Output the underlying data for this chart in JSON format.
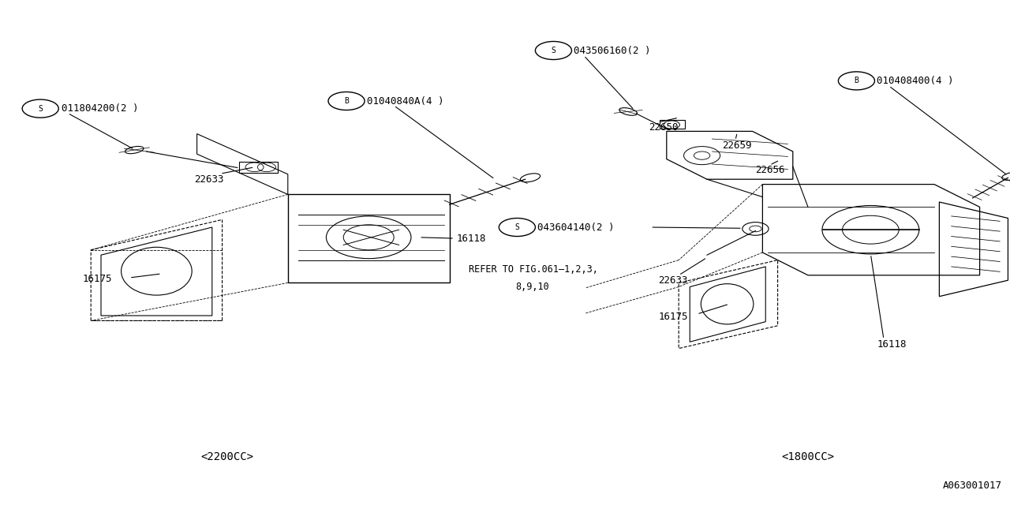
{
  "bg_color": "#ffffff",
  "line_color": "#000000",
  "fig_width": 12.8,
  "fig_height": 6.4,
  "dpi": 100,
  "diagram_id": "A063001017",
  "left_label": "<2200CC>",
  "right_label": "<1800CC>"
}
